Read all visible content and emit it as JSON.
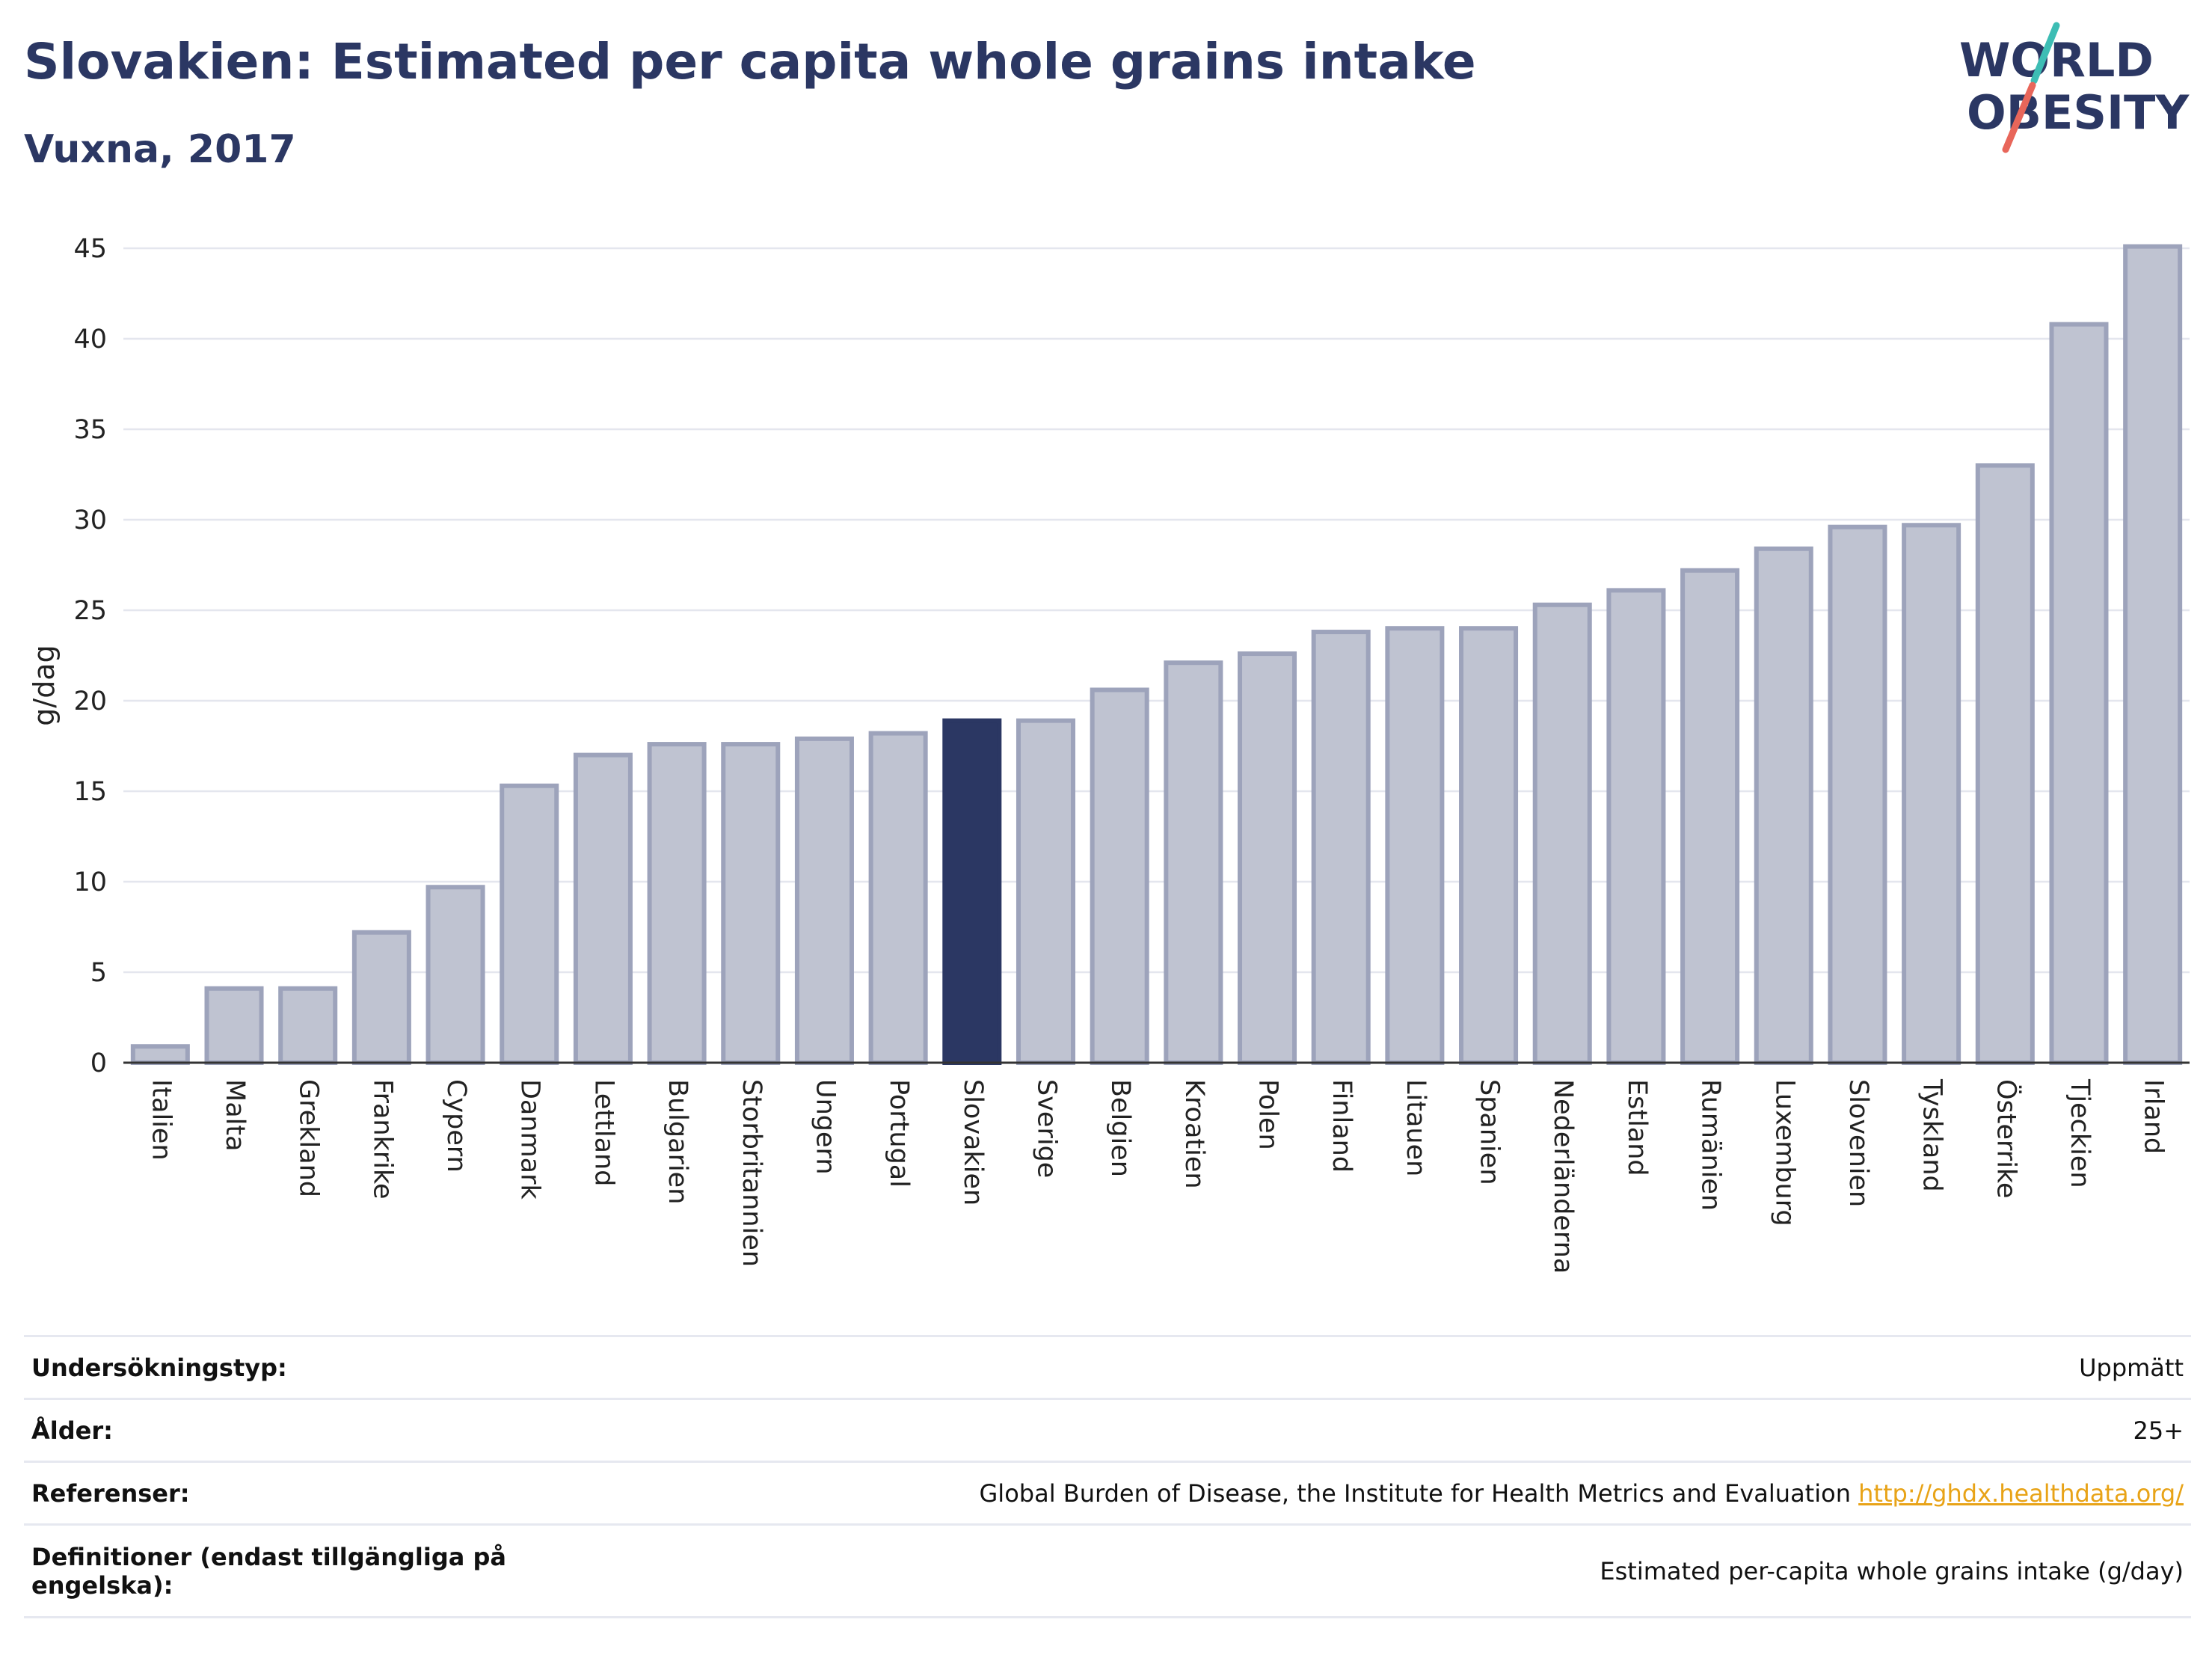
{
  "header": {
    "title": "Slovakien: Estimated per capita whole grains intake",
    "subtitle": "Vuxna, 2017"
  },
  "logo": {
    "line1": "WORLD",
    "line2": "OBESITY",
    "text_color": "#2b3763",
    "slash_top_color": "#3dbdb4",
    "slash_bottom_color": "#e8665a"
  },
  "colors": {
    "bar_default": "#bfc3d1",
    "bar_default_border": "#9da3bb",
    "bar_highlight": "#2b3763"
  },
  "chart_data": {
    "type": "bar",
    "title": "Slovakien: Estimated per capita whole grains intake",
    "subtitle": "Vuxna, 2017",
    "xlabel": "",
    "ylabel": "g/dag",
    "ylim": [
      0,
      45
    ],
    "yticks": [
      0,
      5,
      10,
      15,
      20,
      25,
      30,
      35,
      40,
      45
    ],
    "grid": true,
    "highlight": "Slovakien",
    "categories": [
      "Italien",
      "Malta",
      "Grekland",
      "Frankrike",
      "Cypern",
      "Danmark",
      "Lettland",
      "Bulgarien",
      "Storbritannien",
      "Ungern",
      "Portugal",
      "Slovakien",
      "Sverige",
      "Belgien",
      "Kroatien",
      "Polen",
      "Finland",
      "Litauen",
      "Spanien",
      "Nederländerna",
      "Estland",
      "Rumänien",
      "Luxemburg",
      "Slovenien",
      "Tyskland",
      "Österrike",
      "Tjeckien",
      "Irland"
    ],
    "values": [
      0.9,
      4.1,
      4.1,
      7.2,
      9.7,
      15.3,
      17.0,
      17.6,
      17.6,
      17.9,
      18.2,
      18.9,
      18.9,
      20.6,
      22.1,
      22.6,
      23.8,
      24.0,
      24.0,
      25.3,
      26.1,
      27.2,
      28.4,
      29.6,
      29.7,
      33.0,
      40.8,
      45.1
    ]
  },
  "meta": [
    {
      "label": "Undersökningstyp:",
      "value": "Uppmätt"
    },
    {
      "label": "Ålder:",
      "value": "25+"
    },
    {
      "label": "Referenser:",
      "value": "Global Burden of Disease, the Institute for Health Metrics and Evaluation",
      "link": "http://ghdx.healthdata.org/"
    },
    {
      "label": "Definitioner (endast tillgängliga på engelska):",
      "value": "Estimated per-capita whole grains intake (g/day)"
    }
  ]
}
